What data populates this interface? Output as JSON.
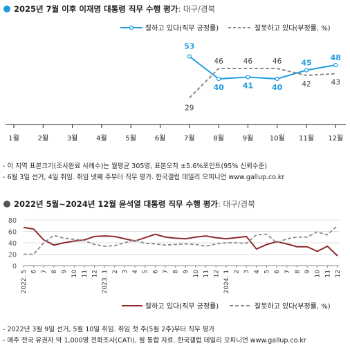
{
  "colors": {
    "top_good": "#1f9ce0",
    "top_bad": "#8a8a8a",
    "bottom_good": "#8c2a2a",
    "bottom_bad": "#8a8a8a",
    "bullet_top": "#1f9ce0",
    "bullet_bottom": "#555555"
  },
  "top": {
    "title": "2025년 7월 이후 이재명 대통령 직무 수행 평가",
    "title_suffix": ": 대구/경북",
    "notes": [
      "- 이 지역 표본크기(조사완료 사례수)는 월평균 305명, 표본오차 ±5.6%포인트(95% 신뢰수준)",
      "- 6월 3일 선거, 4일 취임. 취임 넷째 주부터 직무 평가. 한국갤럽 데일리 오피니언 www.gallup.co.kr"
    ]
  },
  "bottom": {
    "title": "2022년 5월~2024년 12월 윤석열 대통령 직무 수행 평가",
    "title_suffix": ": 대구/경북",
    "notes": [
      "- 2022년 3월 9일 선거, 5월 10일 취임. 취임 첫 주(5월 2주)부터 직무 평가",
      "- 매주 전국 유권자 약 1,000명 전화조사(CATI), 월 통합 자료. 한국갤럽 데일리 오피니언 www.gallup.co.kr"
    ]
  },
  "chart_data": [
    {
      "type": "line",
      "x": [
        "1월",
        "2월",
        "3월",
        "4월",
        "5월",
        "6월",
        "7월",
        "8월",
        "9월",
        "10월",
        "11월",
        "12월"
      ],
      "series": [
        {
          "name": "잘하고 있다(직무 긍정률)",
          "values": [
            null,
            null,
            null,
            null,
            null,
            null,
            53,
            40,
            41,
            40,
            45,
            48
          ]
        },
        {
          "name": "잘못하고 있다(부정률, %)",
          "values": [
            null,
            null,
            null,
            null,
            null,
            null,
            29,
            46,
            46,
            46,
            42,
            43
          ]
        }
      ],
      "ylim": [
        0,
        70
      ],
      "grid": false,
      "legend": "top-right"
    },
    {
      "type": "line",
      "x": [
        "2022. 5",
        "6",
        "7",
        "8",
        "9",
        "10",
        "11",
        "12",
        "2023. 1",
        "2",
        "3",
        "4",
        "5",
        "6",
        "7",
        "8",
        "9",
        "10",
        "11",
        "12",
        "2024. 1",
        "2",
        "3",
        "4",
        "5",
        "6",
        "7",
        "8",
        "9",
        "10",
        "11",
        "12"
      ],
      "series": [
        {
          "name": "잘하고 있다(직무 긍정률)",
          "values": [
            67,
            64,
            45,
            36,
            40,
            43,
            45,
            51,
            52,
            51,
            47,
            43,
            49,
            55,
            50,
            48,
            47,
            50,
            52,
            49,
            47,
            49,
            51,
            29,
            37,
            42,
            38,
            33,
            33,
            25,
            34,
            17
          ]
        },
        {
          "name": "잘못하고 있다(부정률, %)",
          "values": [
            20,
            20,
            40,
            53,
            48,
            46,
            44,
            37,
            34,
            35,
            40,
            45,
            39,
            38,
            36,
            37,
            38,
            37,
            34,
            38,
            40,
            40,
            39,
            54,
            55,
            40,
            47,
            50,
            50,
            59,
            54,
            70
          ]
        }
      ],
      "yticks": [
        0,
        20,
        40,
        60,
        80
      ],
      "ylim": [
        0,
        80
      ],
      "grid": true,
      "legend": "bottom"
    }
  ]
}
